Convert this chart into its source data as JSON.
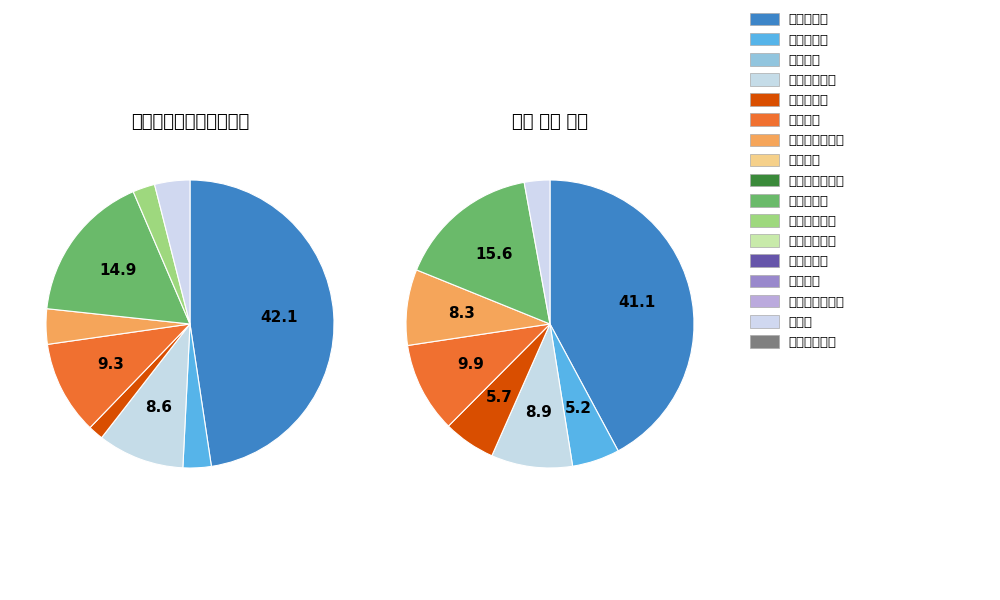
{
  "left_title": "パ・リーグ全プレイヤー",
  "right_title": "鈴木 大地 選手",
  "pitch_types": [
    "ストレート",
    "ツーシーム",
    "シュート",
    "カットボール",
    "スプリット",
    "フォーク",
    "チェンジアップ",
    "シンカー",
    "高速スライダー",
    "スライダー",
    "縦スライダー",
    "パワーカーブ",
    "スクリュー",
    "ナックル",
    "ナックルカーブ",
    "カーブ",
    "スローカーブ"
  ],
  "colors": [
    "#3d85c8",
    "#56b4e9",
    "#92c5de",
    "#c5dce8",
    "#d94e00",
    "#f07030",
    "#f5a55a",
    "#f5d08a",
    "#3a8a3a",
    "#6aba6a",
    "#9ed87e",
    "#c8eaaa",
    "#6655aa",
    "#9988cc",
    "#bbaadd",
    "#d0d8f0",
    "#808080"
  ],
  "left_values": [
    42.1,
    2.8,
    0.0,
    8.6,
    1.5,
    9.3,
    3.5,
    0.0,
    0.0,
    14.9,
    2.2,
    0.0,
    0.0,
    0.0,
    0.0,
    3.5,
    0.0
  ],
  "right_values": [
    41.1,
    5.2,
    0.0,
    8.9,
    5.7,
    9.9,
    8.3,
    0.0,
    0.0,
    15.6,
    0.0,
    0.0,
    0.0,
    0.0,
    0.0,
    2.8,
    0.0
  ],
  "left_shown": {
    "0": "42.1",
    "3": "8.6",
    "5": "9.3",
    "9": "14.9"
  },
  "right_shown": {
    "0": "41.1",
    "1": "5.2",
    "3": "8.9",
    "4": "5.7",
    "5": "9.9",
    "6": "8.3",
    "9": "15.6"
  },
  "label_fontsize": 11
}
